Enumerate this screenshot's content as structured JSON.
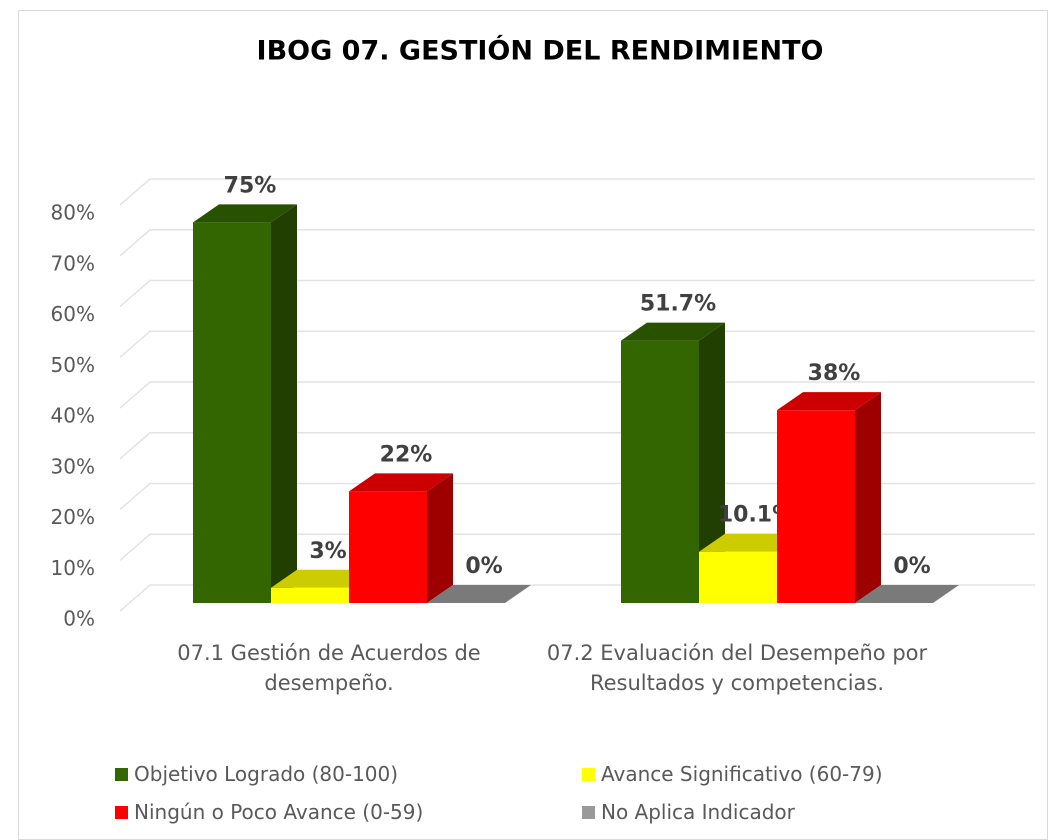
{
  "chart_data": {
    "type": "bar3d",
    "title": "IBOG 07. GESTIÓN DEL RENDIMIENTO",
    "categories": [
      "07.1 Gestión de Acuerdos de desempeño.",
      "07.2 Evaluación del Desempeño por Resultados y competencias."
    ],
    "series": [
      {
        "name": "Objetivo Logrado (80-100)",
        "color": "#336600",
        "values": [
          75,
          51.7
        ],
        "value_labels": [
          "75%",
          "51.7%"
        ]
      },
      {
        "name": "Avance Significativo (60-79)",
        "color": "#ffff00",
        "values": [
          3,
          10.1
        ],
        "value_labels": [
          "3%",
          "10.1%"
        ]
      },
      {
        "name": "Ningún o Poco Avance (0-59)",
        "color": "#ff0000",
        "values": [
          22,
          38
        ],
        "value_labels": [
          "22%",
          "38%"
        ]
      },
      {
        "name": "No Aplica Indicador",
        "color": "#999999",
        "values": [
          0,
          0
        ],
        "value_labels": [
          "0%",
          "0%"
        ]
      }
    ],
    "ylim": [
      0,
      80
    ],
    "yticks": [
      {
        "value": 0,
        "label": "0%"
      },
      {
        "value": 10,
        "label": "10%"
      },
      {
        "value": 20,
        "label": "20%"
      },
      {
        "value": 30,
        "label": "30%"
      },
      {
        "value": 40,
        "label": "40%"
      },
      {
        "value": 50,
        "label": "50%"
      },
      {
        "value": 60,
        "label": "60%"
      },
      {
        "value": 70,
        "label": "70%"
      },
      {
        "value": 80,
        "label": "80%"
      }
    ],
    "grid": true,
    "legend": "bottom"
  }
}
